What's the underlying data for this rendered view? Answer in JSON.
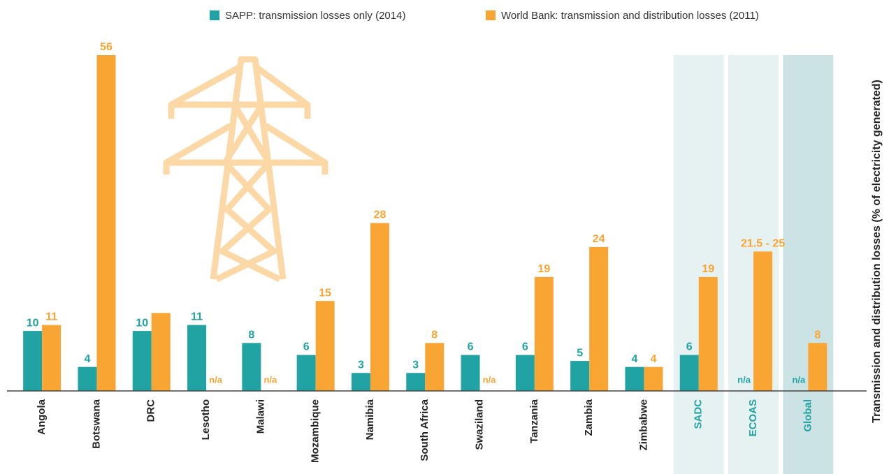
{
  "chart_data": {
    "type": "bar",
    "y_axis_label": "Transmission and distribution losses (% of electricity generated)",
    "categories": [
      "Angola",
      "Botswana",
      "DRC",
      "Lesotho",
      "Malawi",
      "Mozambique",
      "Namibia",
      "South Africa",
      "Swaziland",
      "Tanzania",
      "Zambia",
      "Zimbabwe",
      "SADC",
      "ECOAS",
      "Global"
    ],
    "series": [
      {
        "name": "SAPP: transmission losses only (2014)",
        "color": "#21a3a3",
        "values": [
          10,
          4,
          10,
          11,
          8,
          6,
          3,
          3,
          6,
          6,
          5,
          4,
          6,
          null,
          null
        ],
        "value_labels": [
          "10",
          "4",
          "10",
          "11",
          "8",
          "6",
          "3",
          "3",
          "6",
          "6",
          "5",
          "4",
          "6",
          "n/a",
          "n/a"
        ]
      },
      {
        "name": "World Bank: transmission and distribution losses (2011)",
        "color": "#f9a533",
        "values": [
          11,
          56,
          13,
          null,
          null,
          15,
          28,
          8,
          null,
          19,
          24,
          4,
          19,
          23.25,
          8
        ],
        "value_labels": [
          "11",
          "56",
          null,
          "n/a",
          "n/a",
          "15",
          "28",
          "8",
          "n/a",
          "19",
          "24",
          "4",
          "19",
          "21.5 - 25",
          "8"
        ]
      }
    ],
    "ylim": [
      0,
      60
    ],
    "legend": "top"
  }
}
